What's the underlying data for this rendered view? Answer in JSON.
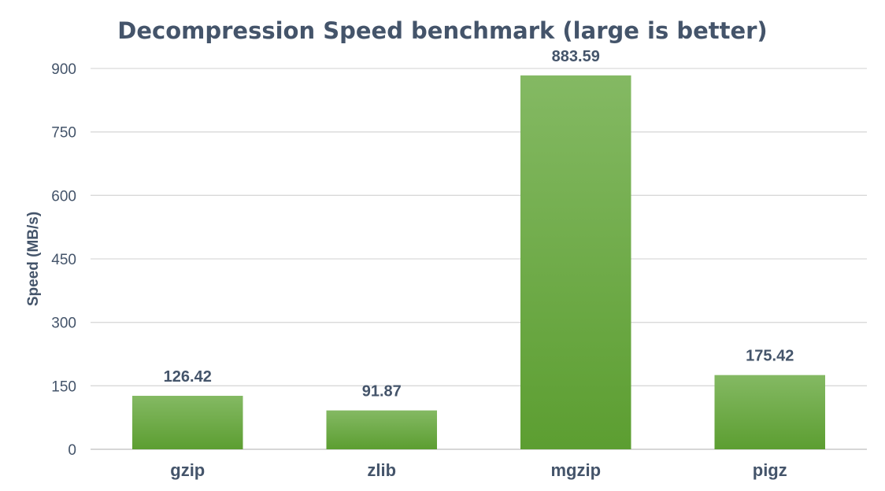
{
  "chart_data": {
    "type": "bar",
    "title": "Decompression Speed benchmark (large is better)",
    "xlabel": "",
    "ylabel": "Speed (MB/s)",
    "categories": [
      "gzip",
      "zlib",
      "mgzip",
      "pigz"
    ],
    "values": [
      126.42,
      91.87,
      883.59,
      175.42
    ],
    "data_labels": [
      "126.42",
      "91.87",
      "883.59",
      "175.42"
    ],
    "ylim": [
      0,
      900
    ],
    "yticks": [
      0,
      150,
      300,
      450,
      600,
      750,
      900
    ],
    "ytick_labels": [
      "0",
      "150",
      "300",
      "450",
      "600",
      "750",
      "900"
    ],
    "grid": true,
    "legend": "none",
    "colors": {
      "bar_top": "#84b963",
      "bar_bottom": "#5c9e31",
      "text": "#44546a",
      "grid": "#d9d9d9"
    }
  }
}
